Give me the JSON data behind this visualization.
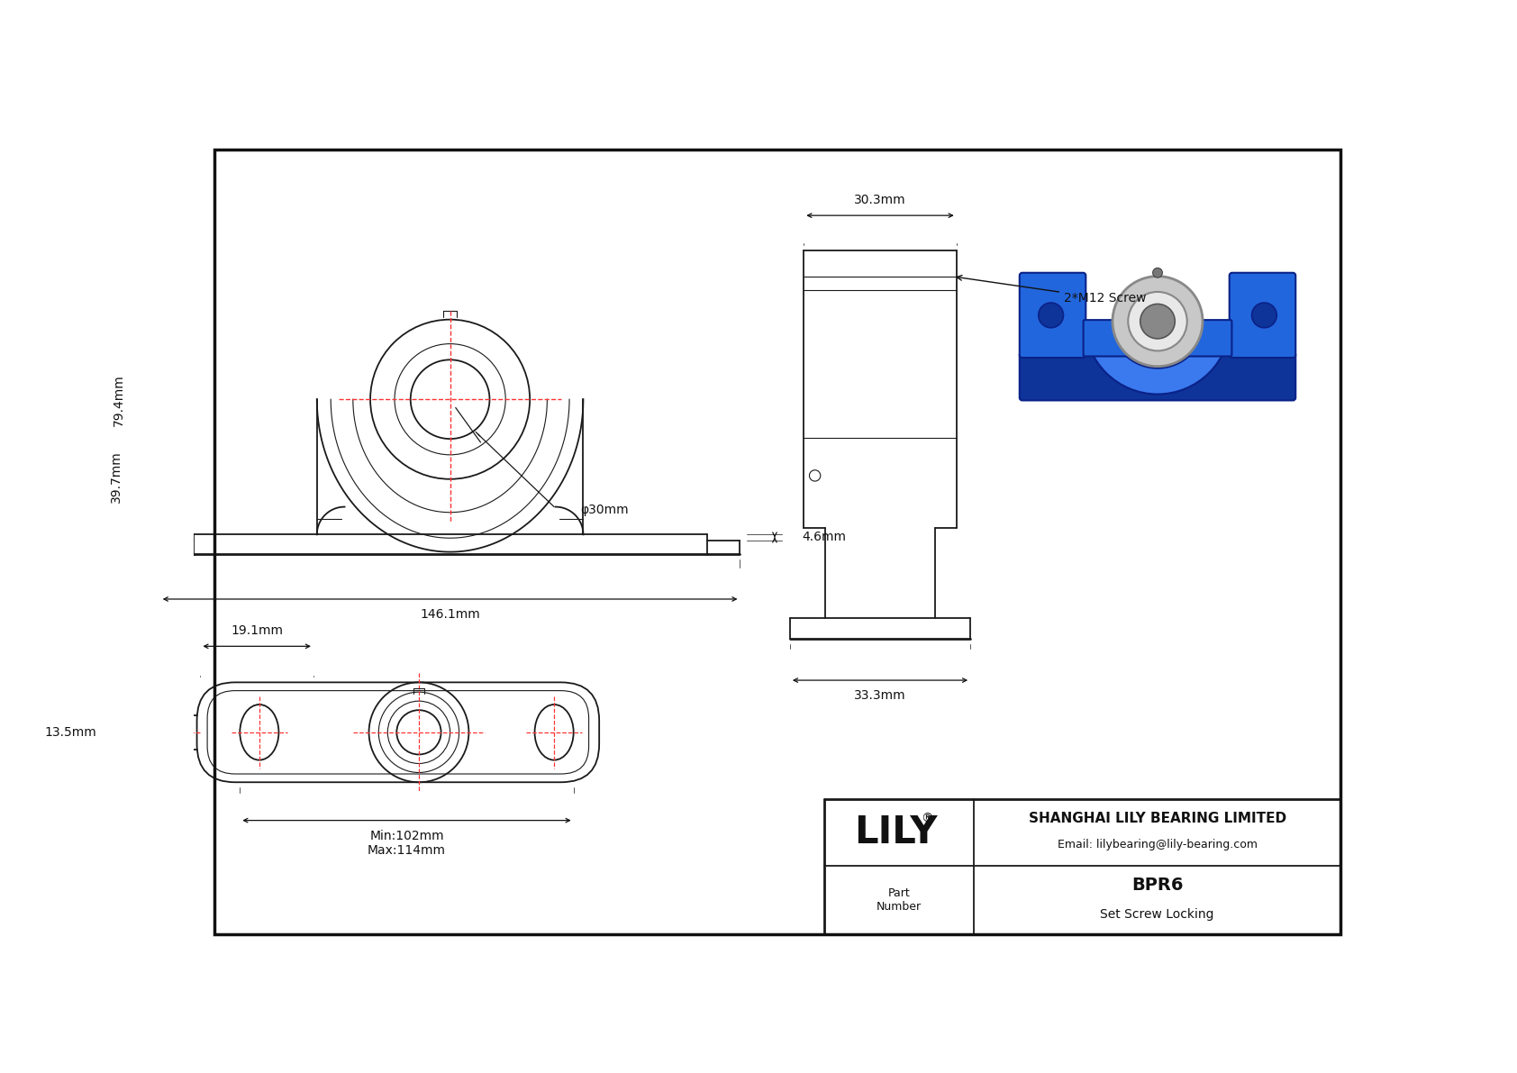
{
  "bg_color": "#ffffff",
  "line_color": "#1a1a1a",
  "dim_color": "#111111",
  "red_line_color": "#ff3333",
  "title_block": {
    "company": "SHANGHAI LILY BEARING LIMITED",
    "email": "Email: lilybearing@lily-bearing.com",
    "part_label": "Part\nNumber",
    "part_name": "BPR6",
    "part_desc": "Set Screw Locking",
    "logo": "LILY"
  },
  "dims": {
    "front_79_4": "79.4mm",
    "front_39_7": "39.7mm",
    "front_146_1": "146.1mm",
    "front_30": "φ30mm",
    "front_4_6": "4.6mm",
    "side_30_3": "30.3mm",
    "side_33_3": "33.3mm",
    "side_screw": "2*M12 Screw",
    "bot_19_1": "19.1mm",
    "bot_13_5": "13.5mm",
    "bot_min": "Min:102mm",
    "bot_max": "Max:114mm"
  }
}
